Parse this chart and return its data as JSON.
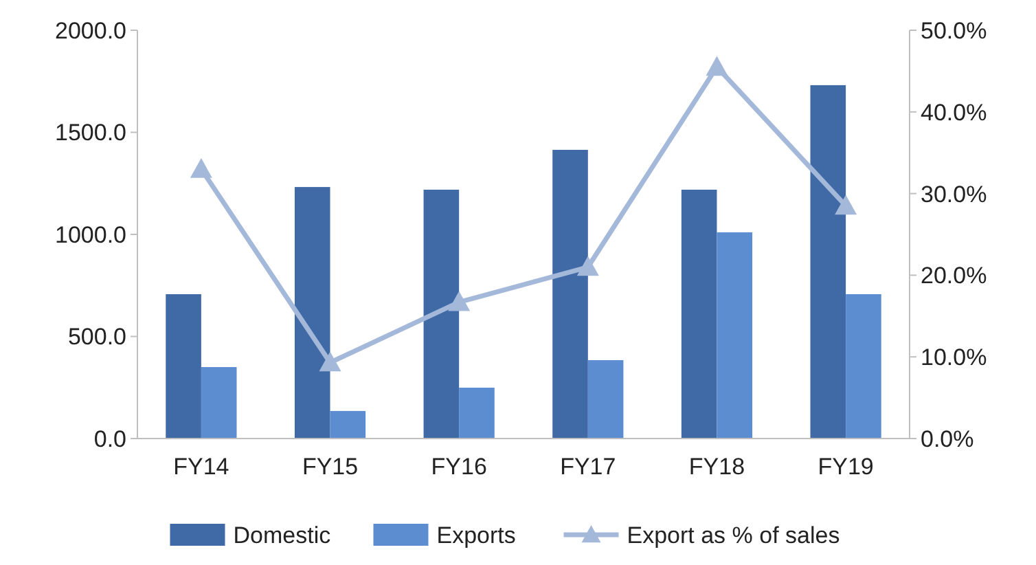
{
  "chart_data": {
    "type": "bar",
    "categories": [
      "FY14",
      "FY15",
      "FY16",
      "FY17",
      "FY18",
      "FY19"
    ],
    "series": [
      {
        "name": "Domestic",
        "color": "#3f6aa6",
        "values": [
          707,
          1232,
          1219,
          1414,
          1219,
          1731
        ]
      },
      {
        "name": "Exports",
        "color": "#5b8dd0",
        "values": [
          350,
          135,
          249,
          384,
          1010,
          707
        ]
      },
      {
        "name": "Export as % of sales",
        "type": "line",
        "axis": "y2",
        "color": "#a4b9da",
        "marker": "triangle",
        "values": [
          33.0,
          9.3,
          16.7,
          21.0,
          45.5,
          28.5
        ]
      }
    ],
    "ylim": [
      0,
      2000
    ],
    "yticks": [
      {
        "value": 0,
        "label": "0.0"
      },
      {
        "value": 500,
        "label": "500.0"
      },
      {
        "value": 1000,
        "label": "1000.0"
      },
      {
        "value": 1500,
        "label": "1500.0"
      },
      {
        "value": 2000,
        "label": "2000.0"
      }
    ],
    "y2lim": [
      0,
      50
    ],
    "y2ticks": [
      {
        "value": 0,
        "label": "0.0%"
      },
      {
        "value": 10,
        "label": "10.0%"
      },
      {
        "value": 20,
        "label": "20.0%"
      },
      {
        "value": 30,
        "label": "30.0%"
      },
      {
        "value": 40,
        "label": "40.0%"
      },
      {
        "value": 50,
        "label": "50.0%"
      }
    ],
    "legend": "bottom"
  }
}
